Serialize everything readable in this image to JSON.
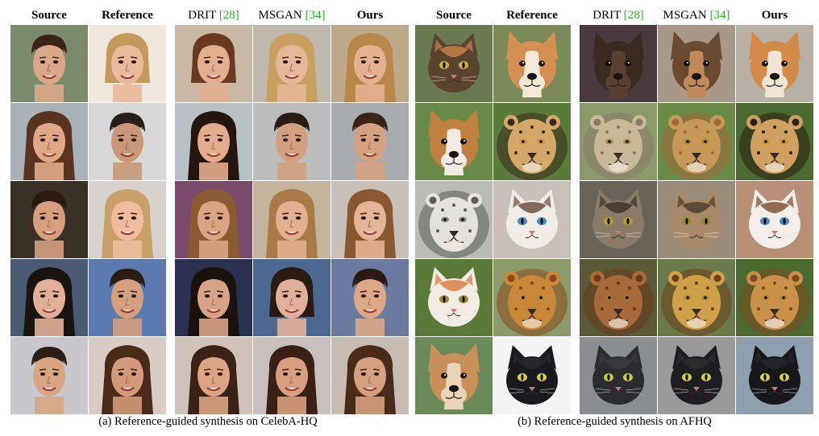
{
  "panels": [
    {
      "id": "a",
      "headers": [
        {
          "text": "Source",
          "bold": true,
          "cite": ""
        },
        {
          "text": "Reference",
          "bold": true,
          "cite": ""
        },
        {
          "text": "DRIT ",
          "bold": false,
          "cite": "[28]"
        },
        {
          "text": "MSGAN ",
          "bold": false,
          "cite": "[34]"
        },
        {
          "text": "Ours",
          "bold": true,
          "cite": ""
        }
      ],
      "caption": "(a) Reference-guided synthesis on CelebA-HQ",
      "rows": [
        [
          {
            "kind": "face",
            "bg": "#7a8a6a",
            "skin": "#d9a888",
            "hair": "#3a2418",
            "hairStyle": "short"
          },
          {
            "kind": "face",
            "bg": "#efe6dc",
            "skin": "#e8b99a",
            "hair": "#c49a5a",
            "hairStyle": "bob"
          },
          {
            "kind": "face",
            "bg": "#c8b8a4",
            "skin": "#e2ae90",
            "hair": "#6a3a20",
            "hairStyle": "bob"
          },
          {
            "kind": "face",
            "bg": "#c0b8ac",
            "skin": "#e6b698",
            "hair": "#caa060",
            "hairStyle": "long"
          },
          {
            "kind": "face",
            "bg": "#bda88a",
            "skin": "#e4b090",
            "hair": "#b8884a",
            "hairStyle": "long"
          }
        ],
        [
          {
            "kind": "face",
            "bg": "#a9b2b8",
            "skin": "#e0a888",
            "hair": "#5a3420",
            "hairStyle": "long"
          },
          {
            "kind": "face",
            "bg": "#d8d8d8",
            "skin": "#c89878",
            "hair": "#2a1e18",
            "hairStyle": "short"
          },
          {
            "kind": "face",
            "bg": "#b8c0c4",
            "skin": "#e2ac8e",
            "hair": "#24160e",
            "hairStyle": "long"
          },
          {
            "kind": "face",
            "bg": "#bcbcbc",
            "skin": "#d2a080",
            "hair": "#2a1c14",
            "hairStyle": "short"
          },
          {
            "kind": "face",
            "bg": "#a8acae",
            "skin": "#d6a282",
            "hair": "#3a2418",
            "hairStyle": "short"
          }
        ],
        [
          {
            "kind": "face",
            "bg": "#3a3026",
            "skin": "#d6a080",
            "hair": "#2a1a10",
            "hairStyle": "short"
          },
          {
            "kind": "face",
            "bg": "#d8d2ce",
            "skin": "#ecbc9c",
            "hair": "#c8a068",
            "hairStyle": "long"
          },
          {
            "kind": "face",
            "bg": "#7a4a6a",
            "skin": "#d8a484",
            "hair": "#8a5a30",
            "hairStyle": "long"
          },
          {
            "kind": "face",
            "bg": "#c4b49c",
            "skin": "#e0b090",
            "hair": "#a87a48",
            "hairStyle": "long"
          },
          {
            "kind": "face",
            "bg": "#c8c0b8",
            "skin": "#e4b496",
            "hair": "#8a5830",
            "hairStyle": "long"
          }
        ],
        [
          {
            "kind": "face",
            "bg": "#4a5a72",
            "skin": "#e2b098",
            "hair": "#1a1410",
            "hairStyle": "long"
          },
          {
            "kind": "face",
            "bg": "#5a7ab0",
            "skin": "#d4a080",
            "hair": "#2a1c12",
            "hairStyle": "short"
          },
          {
            "kind": "face",
            "bg": "#2a3050",
            "skin": "#d8a488",
            "hair": "#1a120c",
            "hairStyle": "long"
          },
          {
            "kind": "face",
            "bg": "#4a6890",
            "skin": "#e2b09a",
            "hair": "#2a1a12",
            "hairStyle": "bob"
          },
          {
            "kind": "face",
            "bg": "#6a7aa0",
            "skin": "#dca888",
            "hair": "#2a1a10",
            "hairStyle": "short"
          }
        ],
        [
          {
            "kind": "face",
            "bg": "#c8c8cc",
            "skin": "#d8a482",
            "hair": "#2a1e16",
            "hairStyle": "short"
          },
          {
            "kind": "face",
            "bg": "#d8ccc4",
            "skin": "#d29a7a",
            "hair": "#4a2a18",
            "hairStyle": "long"
          },
          {
            "kind": "face",
            "bg": "#d0c2b8",
            "skin": "#dca484",
            "hair": "#3a2216",
            "hairStyle": "long"
          },
          {
            "kind": "face",
            "bg": "#c8c0bc",
            "skin": "#d8a080",
            "hair": "#3a2014",
            "hairStyle": "long"
          },
          {
            "kind": "face",
            "bg": "#c8bcb2",
            "skin": "#d6a080",
            "hair": "#4a2a18",
            "hairStyle": "long"
          }
        ]
      ]
    },
    {
      "id": "b",
      "headers": [
        {
          "text": "Source",
          "bold": true,
          "cite": ""
        },
        {
          "text": "Reference",
          "bold": true,
          "cite": ""
        },
        {
          "text": "DRIT ",
          "bold": false,
          "cite": "[28]"
        },
        {
          "text": "MSGAN ",
          "bold": false,
          "cite": "[34]"
        },
        {
          "text": "Ours",
          "bold": true,
          "cite": ""
        }
      ],
      "caption": "(b) Reference-guided synthesis on AFHQ",
      "rows": [
        [
          {
            "kind": "cat",
            "bg": "#6a7a50",
            "fur": "#5a4430",
            "accent": "#c8844a",
            "eye": "#c8b040"
          },
          {
            "kind": "dog",
            "bg": "#7a8a58",
            "fur": "#d49050",
            "accent": "#f4e8d8",
            "eye": "#201810"
          },
          {
            "kind": "dog",
            "bg": "#4a3a40",
            "fur": "#3a2a20",
            "accent": "#5a4030",
            "eye": "#100c08"
          },
          {
            "kind": "dog",
            "bg": "#a89888",
            "fur": "#6a4a30",
            "accent": "#c08a58",
            "eye": "#100c08"
          },
          {
            "kind": "dog",
            "bg": "#b8b0a4",
            "fur": "#d48a48",
            "accent": "#f0e4d4",
            "eye": "#201810"
          }
        ],
        [
          {
            "kind": "dog",
            "bg": "#6a8a4a",
            "fur": "#c0803e",
            "accent": "#f2ece4",
            "eye": "#1a1208"
          },
          {
            "kind": "bigcat",
            "bg": "#5a7a3a",
            "fur": "#d4a868",
            "accent": "#3a2a1a",
            "eye": "#c89830"
          },
          {
            "kind": "bigcat",
            "bg": "#8a9a6a",
            "fur": "#c8b898",
            "accent": "#8a7a6a",
            "eye": "#a88a40"
          },
          {
            "kind": "bigcat",
            "bg": "#6a8a48",
            "fur": "#c89858",
            "accent": "#a06a38",
            "eye": "#b08830"
          },
          {
            "kind": "bigcat",
            "bg": "#4a6a30",
            "fur": "#d0a060",
            "accent": "#2a1e12",
            "eye": "#c89830"
          }
        ],
        [
          {
            "kind": "bigcat",
            "bg": "#b8bcb4",
            "fur": "#e4e2dc",
            "accent": "#5a5a5a",
            "eye": "#7a8a7a"
          },
          {
            "kind": "cat",
            "bg": "#c8c0b8",
            "fur": "#f0ece6",
            "accent": "#6a4a38",
            "eye": "#4a8ac8"
          },
          {
            "kind": "cat",
            "bg": "#6a6458",
            "fur": "#8a7a68",
            "accent": "#3a3028",
            "eye": "#b8a030"
          },
          {
            "kind": "cat",
            "bg": "#9a8a78",
            "fur": "#a88a6a",
            "accent": "#4a3a2a",
            "eye": "#9a8a30"
          },
          {
            "kind": "cat",
            "bg": "#b89078",
            "fur": "#f2eee8",
            "accent": "#7a4a30",
            "eye": "#4a8ac8"
          }
        ],
        [
          {
            "kind": "cat",
            "bg": "#5a7a3a",
            "fur": "#f2ece4",
            "accent": "#d87838",
            "eye": "#9a8a30"
          },
          {
            "kind": "bigcat",
            "bg": "#8a9a6a",
            "fur": "#c88838",
            "accent": "#8a4a18",
            "eye": "#b88a30"
          },
          {
            "kind": "bigcat",
            "bg": "#5a5a38",
            "fur": "#a86a38",
            "accent": "#6a3a18",
            "eye": "#a07a30"
          },
          {
            "kind": "bigcat",
            "bg": "#6a7a4a",
            "fur": "#d0a048",
            "accent": "#6a4018",
            "eye": "#b88a30"
          },
          {
            "kind": "bigcat",
            "bg": "#4a6a30",
            "fur": "#c89048",
            "accent": "#7a4a20",
            "eye": "#b88a30"
          }
        ],
        [
          {
            "kind": "dog",
            "bg": "#6a8a5a",
            "fur": "#c89058",
            "accent": "#e8d4b8",
            "eye": "#1a1208"
          },
          {
            "kind": "cat",
            "bg": "#f4f4f4",
            "fur": "#1a1a1e",
            "accent": "#2a2a2e",
            "eye": "#d8d040"
          },
          {
            "kind": "cat",
            "bg": "#8a8e90",
            "fur": "#2a2c30",
            "accent": "#3a3c40",
            "eye": "#c8c840"
          },
          {
            "kind": "cat",
            "bg": "#9a9a9a",
            "fur": "#1e1e22",
            "accent": "#2e2e32",
            "eye": "#d8d040"
          },
          {
            "kind": "cat",
            "bg": "#8ea0b0",
            "fur": "#18181c",
            "accent": "#28282c",
            "eye": "#d8d040"
          }
        ]
      ]
    }
  ]
}
